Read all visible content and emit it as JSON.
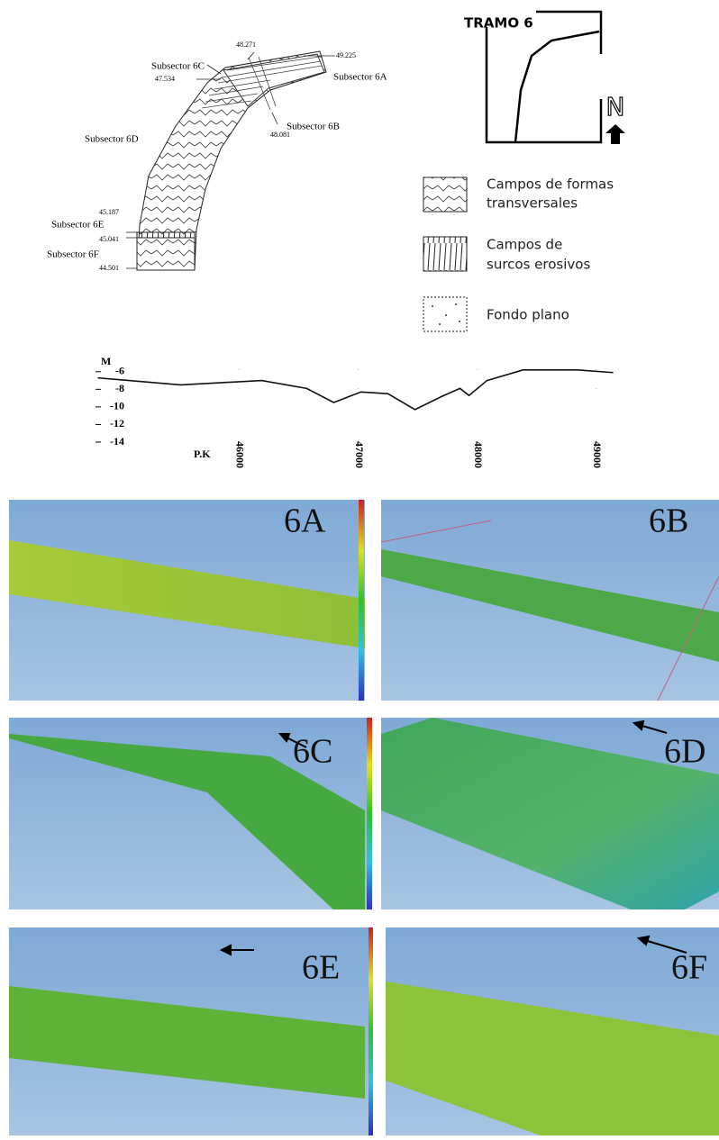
{
  "diagram": {
    "subsectors": [
      "Subsector 6A",
      "Subsector 6B",
      "Subsector 6C",
      "Subsector 6D",
      "Subsector 6E",
      "Subsector 6F"
    ],
    "chainages": [
      "49.225",
      "48.271",
      "47.534",
      "48.081",
      "45.187",
      "45.041",
      "44.501"
    ],
    "inset_title": "TRAMO 6",
    "north": "N"
  },
  "legend": [
    "Campos de formas",
    "transversales",
    "Campos de",
    "surcos erosivos",
    "Fondo plano"
  ],
  "profile": {
    "type": "line",
    "y_label": "M",
    "x_label": "P.K",
    "x": [
      44811,
      45508,
      46189,
      46568,
      46795,
      47023,
      47250,
      47477,
      47705,
      47856,
      47932,
      48083,
      48386,
      48841,
      49144
    ],
    "values": [
      -6.7,
      -7.5,
      -7,
      -7.9,
      -9.5,
      -8.3,
      -8.5,
      -10.3,
      -8.8,
      -7.9,
      -8.7,
      -7,
      -5.8,
      -5.8,
      -6.1
    ],
    "xlim": [
      44800,
      49200
    ],
    "ylim": [
      -5,
      -14
    ],
    "yticks": [
      -6,
      -8,
      -10,
      -12,
      -14
    ],
    "xticks": [
      46000,
      47000,
      48000,
      49000
    ],
    "color": "#111111"
  },
  "panels": [
    "6A",
    "6B",
    "6C",
    "6D",
    "6E",
    "6F"
  ]
}
